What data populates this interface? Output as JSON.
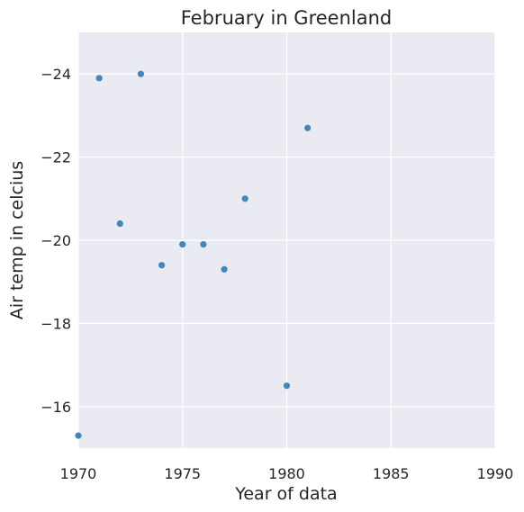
{
  "chart_data": {
    "type": "scatter",
    "title": "February in Greenland",
    "xlabel": "Year of data",
    "ylabel": "Air temp in celcius",
    "xlim": [
      1970,
      1990
    ],
    "ylim": [
      -15,
      -25
    ],
    "y_axis_inverted": true,
    "xticks": [
      1970,
      1975,
      1980,
      1985,
      1990
    ],
    "xtick_labels": [
      "1970",
      "1975",
      "1980",
      "1985",
      "1990"
    ],
    "yticks": [
      -24,
      -22,
      -20,
      -18,
      -16
    ],
    "ytick_labels": [
      "−24",
      "−22",
      "−20",
      "−18",
      "−16"
    ],
    "grid": true,
    "point_color": "#3b7fb6",
    "background_color": "#eaeaf2",
    "points": [
      {
        "x": 1970,
        "y": -15.3
      },
      {
        "x": 1971,
        "y": -23.9
      },
      {
        "x": 1972,
        "y": -20.4
      },
      {
        "x": 1973,
        "y": -24.0
      },
      {
        "x": 1974,
        "y": -19.4
      },
      {
        "x": 1975,
        "y": -19.9
      },
      {
        "x": 1976,
        "y": -19.9
      },
      {
        "x": 1977,
        "y": -19.3
      },
      {
        "x": 1978,
        "y": -21.0
      },
      {
        "x": 1980,
        "y": -16.5
      },
      {
        "x": 1981,
        "y": -22.7
      }
    ]
  }
}
